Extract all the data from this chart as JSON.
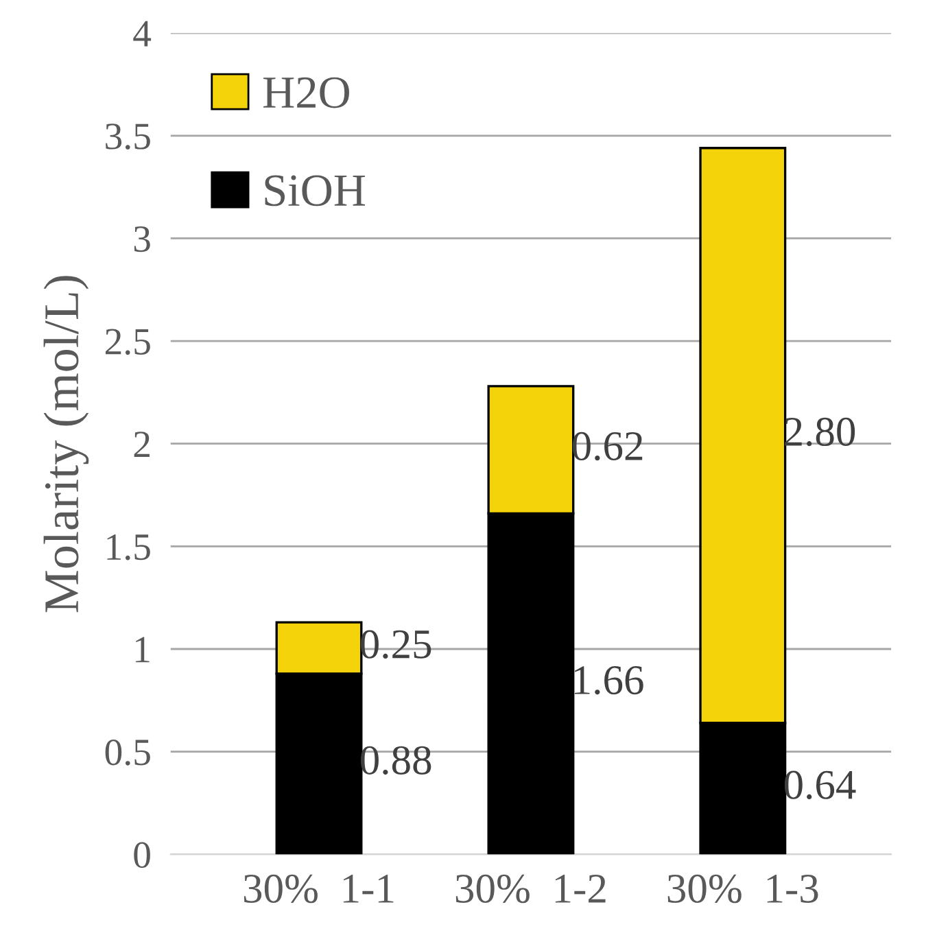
{
  "chart_data": {
    "type": "bar",
    "stacked": true,
    "ylabel": "Molarity (mol/L)",
    "categories": [
      "30%  1-1",
      "30%  1-2",
      "30%  1-3"
    ],
    "series": [
      {
        "name": "SiOH",
        "color": "#000000",
        "values": [
          0.88,
          1.66,
          0.64
        ],
        "value_labels": [
          "0.88",
          "1.66",
          "0.64"
        ]
      },
      {
        "name": "H2O",
        "color": "#f5d30a",
        "values": [
          0.25,
          0.62,
          2.8
        ],
        "value_labels": [
          "0.25",
          "0.62",
          "2.80"
        ]
      }
    ],
    "ylim": [
      0,
      4
    ],
    "yticks": [
      0,
      0.5,
      1,
      1.5,
      2,
      2.5,
      3,
      3.5,
      4
    ],
    "grid": "y",
    "legend": "top left"
  }
}
